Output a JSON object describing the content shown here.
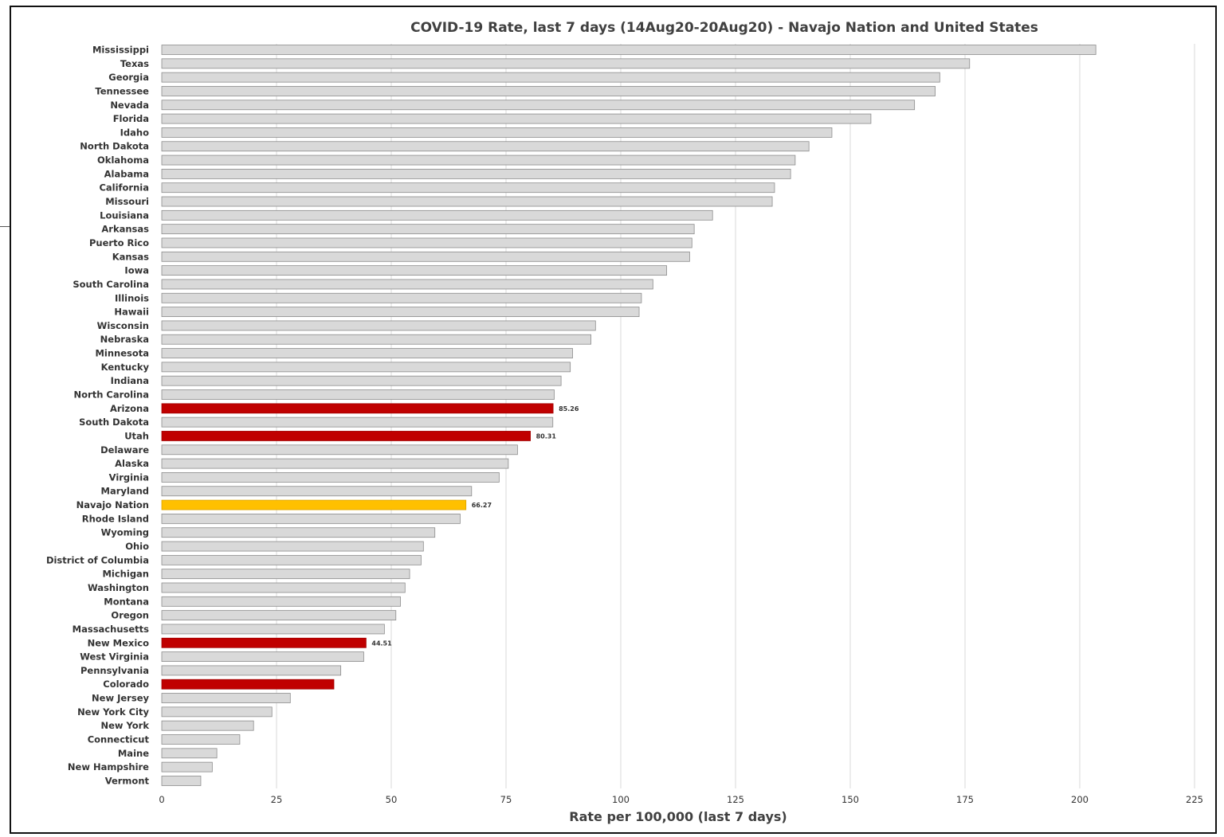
{
  "chart_data": {
    "type": "bar",
    "orientation": "horizontal",
    "title": "COVID-19 Rate, last 7 days (14Aug20-20Aug20) - Navajo Nation and United States",
    "xlabel": "Rate per 100,000 (last 7 days)",
    "ylabel": "",
    "xlim": [
      0,
      225
    ],
    "xticks": [
      "0",
      "25",
      "50",
      "75",
      "100",
      "125",
      "150",
      "175",
      "200",
      "225"
    ],
    "grid": "vertical",
    "legend": "none",
    "colors": {
      "default": "#d9d9d9",
      "border": "#8c8c8c",
      "highlight_red": "#c00000",
      "highlight_gold": "#ffc000",
      "grid": "#d9d9d9"
    },
    "categories": [
      "Mississippi",
      "Texas",
      "Georgia",
      "Tennessee",
      "Nevada",
      "Florida",
      "Idaho",
      "North Dakota",
      "Oklahoma",
      "Alabama",
      "California",
      "Missouri",
      "Louisiana",
      "Arkansas",
      "Puerto Rico",
      "Kansas",
      "Iowa",
      "South Carolina",
      "Illinois",
      "Hawaii",
      "Wisconsin",
      "Nebraska",
      "Minnesota",
      "Kentucky",
      "Indiana",
      "North Carolina",
      "Arizona",
      "South Dakota",
      "Utah",
      "Delaware",
      "Alaska",
      "Virginia",
      "Maryland",
      "Navajo Nation",
      "Rhode Island",
      "Wyoming",
      "Ohio",
      "District of Columbia",
      "Michigan",
      "Washington",
      "Montana",
      "Oregon",
      "Massachusetts",
      "New Mexico",
      "West Virginia",
      "Pennsylvania",
      "Colorado",
      "New Jersey",
      "New York City",
      "New York",
      "Connecticut",
      "Maine",
      "New Hampshire",
      "Vermont"
    ],
    "values": [
      203.5,
      176,
      169.5,
      168.5,
      164,
      154.5,
      146,
      141,
      138,
      137,
      133.5,
      133,
      120,
      116,
      115.5,
      115,
      110,
      107,
      104.5,
      104,
      94.5,
      93.5,
      89.5,
      89,
      87,
      85.5,
      85.26,
      85.2,
      80.31,
      77.5,
      75.5,
      73.5,
      67.5,
      66.27,
      65,
      59.5,
      57,
      56.5,
      54,
      53,
      52,
      51,
      48.5,
      44.51,
      44,
      39,
      37.5,
      28,
      24,
      20,
      17,
      12,
      11,
      8.5
    ],
    "highlights": {
      "Arizona": "red",
      "Utah": "red",
      "New Mexico": "red",
      "Colorado": "red",
      "Navajo Nation": "gold"
    },
    "data_labels": {
      "Arizona": "85.26",
      "Utah": "80.31",
      "Navajo Nation": "66.27",
      "New Mexico": "44.51"
    }
  }
}
